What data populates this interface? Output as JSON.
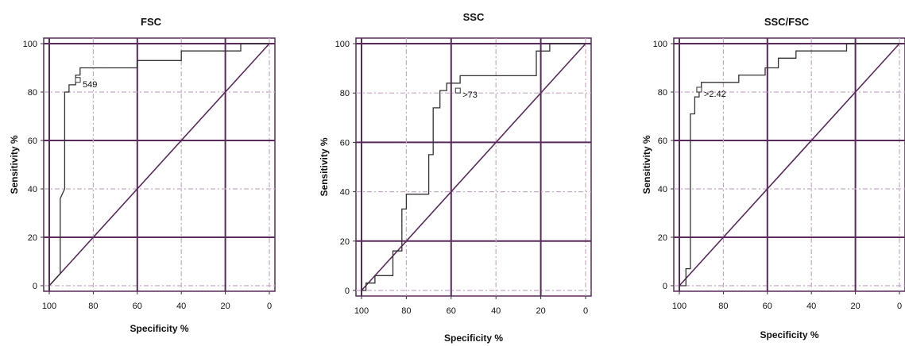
{
  "figure": {
    "panels": [
      {
        "title": "FSC",
        "xlabel": "Specificity %",
        "ylabel": "Sensitivity %"
      },
      {
        "title": "SSC",
        "xlabel": "Specificity %",
        "ylabel": "Sensitivity %"
      },
      {
        "title": "SSC/FSC",
        "xlabel": "Specificity %",
        "ylabel": "Sensitivity %"
      }
    ]
  },
  "colors": {
    "grid_dark": "#5a2a5c",
    "grid_light": "#c8a9c9",
    "curve": "#333333",
    "diagonal": "#5a2a5c"
  },
  "chart_data": [
    {
      "type": "line",
      "title": "FSC",
      "xlabel": "Specificity %",
      "ylabel": "Sensitivity %",
      "xlim": [
        100,
        0
      ],
      "ylim": [
        0,
        100
      ],
      "x_ticks": [
        "100",
        "80",
        "60",
        "40",
        "20",
        "0"
      ],
      "y_ticks": [
        "0",
        "20",
        "40",
        "60",
        "80",
        "100"
      ],
      "grid": true,
      "annotations": [
        {
          "text": "549",
          "x": 87,
          "y": 85
        }
      ],
      "series": [
        {
          "x": [
            100,
            95,
            95,
            93,
            93,
            91,
            91,
            88,
            88,
            86,
            86,
            80,
            80,
            60,
            60,
            40,
            40,
            20,
            20,
            13,
            13,
            0
          ],
          "y": [
            0,
            5,
            36,
            40,
            80,
            80,
            83,
            83,
            87,
            87,
            90,
            90,
            90,
            90,
            93,
            93,
            97,
            97,
            97,
            97,
            100,
            100
          ]
        },
        {
          "x": [
            100,
            0
          ],
          "y": [
            0,
            100
          ]
        }
      ]
    },
    {
      "type": "line",
      "title": "SSC",
      "xlabel": "Specificity %",
      "ylabel": "Sensitivity %",
      "xlim": [
        100,
        0
      ],
      "ylim": [
        0,
        100
      ],
      "x_ticks": [
        "100",
        "80",
        "60",
        "40",
        "20",
        "0"
      ],
      "y_ticks": [
        "0",
        "20",
        "40",
        "60",
        "80",
        "100"
      ],
      "grid": true,
      "annotations": [
        {
          "text": ">73",
          "x": 57,
          "y": 81
        }
      ],
      "series": [
        {
          "x": [
            100,
            98,
            98,
            94,
            94,
            86,
            86,
            82,
            82,
            80,
            80,
            72,
            72,
            70,
            70,
            68,
            68,
            65,
            65,
            62,
            62,
            56,
            56,
            40,
            40,
            22,
            22,
            16,
            16,
            0
          ],
          "y": [
            0,
            0,
            3,
            3,
            6,
            6,
            16,
            16,
            33,
            33,
            39,
            39,
            39,
            39,
            55,
            55,
            74,
            74,
            81,
            81,
            84,
            84,
            87,
            87,
            87,
            87,
            97,
            97,
            100,
            100
          ]
        },
        {
          "x": [
            100,
            0
          ],
          "y": [
            0,
            100
          ]
        }
      ]
    },
    {
      "type": "line",
      "title": "SSC/FSC",
      "xlabel": "Specificity %",
      "ylabel": "Sensitivity %",
      "xlim": [
        100,
        0
      ],
      "ylim": [
        0,
        100
      ],
      "x_ticks": [
        "100",
        "80",
        "60",
        "40",
        "20",
        "0"
      ],
      "y_ticks": [
        "0",
        "20",
        "40",
        "60",
        "80",
        "100"
      ],
      "grid": true,
      "annotations": [
        {
          "text": ">2.42",
          "x": 91,
          "y": 81
        }
      ],
      "series": [
        {
          "x": [
            100,
            97,
            97,
            95,
            95,
            93,
            93,
            91,
            91,
            90,
            90,
            80,
            80,
            73,
            73,
            61,
            61,
            55,
            55,
            47,
            47,
            24,
            24,
            0
          ],
          "y": [
            0,
            0,
            7,
            7,
            71,
            71,
            78,
            78,
            81,
            81,
            84,
            84,
            84,
            84,
            87,
            87,
            90,
            90,
            94,
            94,
            97,
            97,
            100,
            100
          ]
        },
        {
          "x": [
            100,
            0
          ],
          "y": [
            0,
            100
          ]
        }
      ]
    }
  ]
}
